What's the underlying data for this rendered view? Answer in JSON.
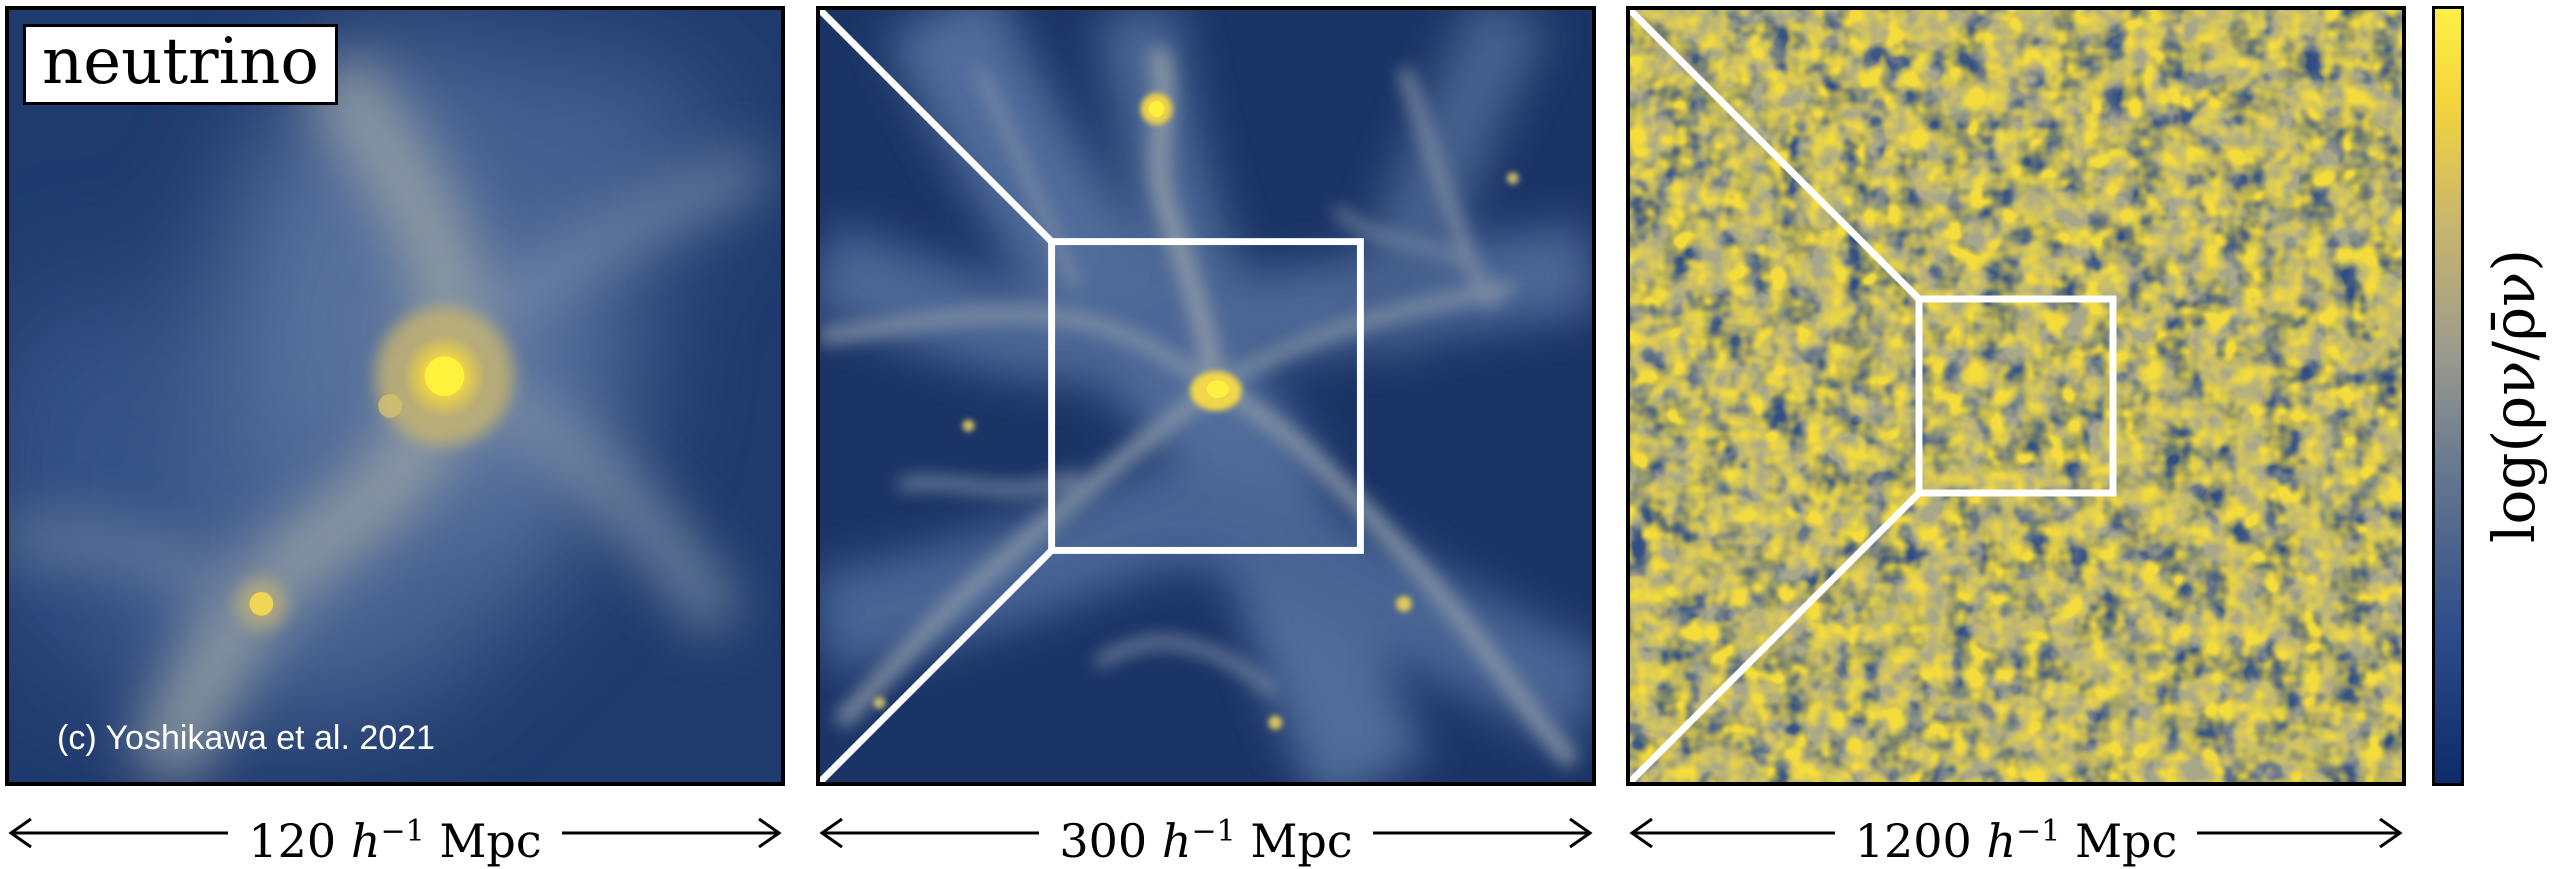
{
  "figure": {
    "panels": [
      {
        "id": "panel-1",
        "scale_label": "120 h^-1 Mpc",
        "scale_number": "120",
        "scale_h": "h",
        "scale_exp": "−1",
        "scale_unit": "Mpc"
      },
      {
        "id": "panel-2",
        "scale_label": "300 h^-1 Mpc",
        "scale_number": "300",
        "scale_h": "h",
        "scale_exp": "−1",
        "scale_unit": "Mpc"
      },
      {
        "id": "panel-3",
        "scale_label": "1200 h^-1 Mpc",
        "scale_number": "1200",
        "scale_h": "h",
        "scale_exp": "−1",
        "scale_unit": "Mpc"
      }
    ],
    "species_label": "neutrino",
    "credit": "(c) Yoshikawa et al. 2021",
    "colorbar": {
      "label": "log(ρν/ρ̄ν)",
      "colormap": [
        "#0d2a6b",
        "#2f4d8a",
        "#6b7b90",
        "#9a9a8e",
        "#c8b56e",
        "#f3d53b",
        "#fff046"
      ]
    },
    "colors": {
      "background_void": "#16305e",
      "filament_mid": "#6f86a8",
      "peak": "#ffe83a",
      "zoom_box": "#ffffff"
    }
  }
}
